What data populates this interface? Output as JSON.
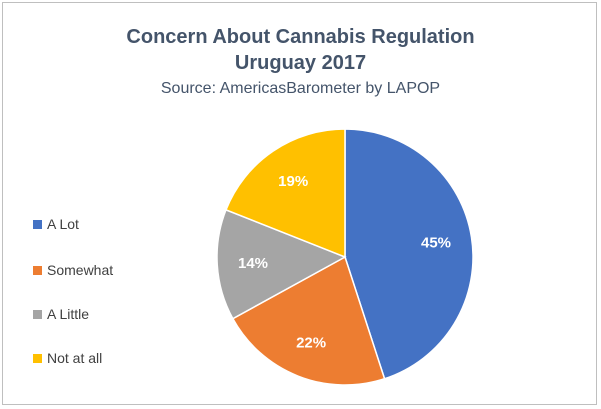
{
  "chart_data": {
    "type": "pie",
    "title_line1": "Concern About Cannabis Regulation",
    "title_line2": "Uruguay 2017",
    "subtitle": "Source: AmericasBarometer by LAPOP",
    "legend_position": "left",
    "slices": [
      {
        "label": "A Lot",
        "value": 45,
        "display": "45%",
        "color": "#4472c4"
      },
      {
        "label": "Somewhat",
        "value": 22,
        "display": "22%",
        "color": "#ed7d31"
      },
      {
        "label": "A Little",
        "value": 14,
        "display": "14%",
        "color": "#a5a5a5"
      },
      {
        "label": "Not at all",
        "value": 19,
        "display": "19%",
        "color": "#ffc000"
      }
    ]
  }
}
